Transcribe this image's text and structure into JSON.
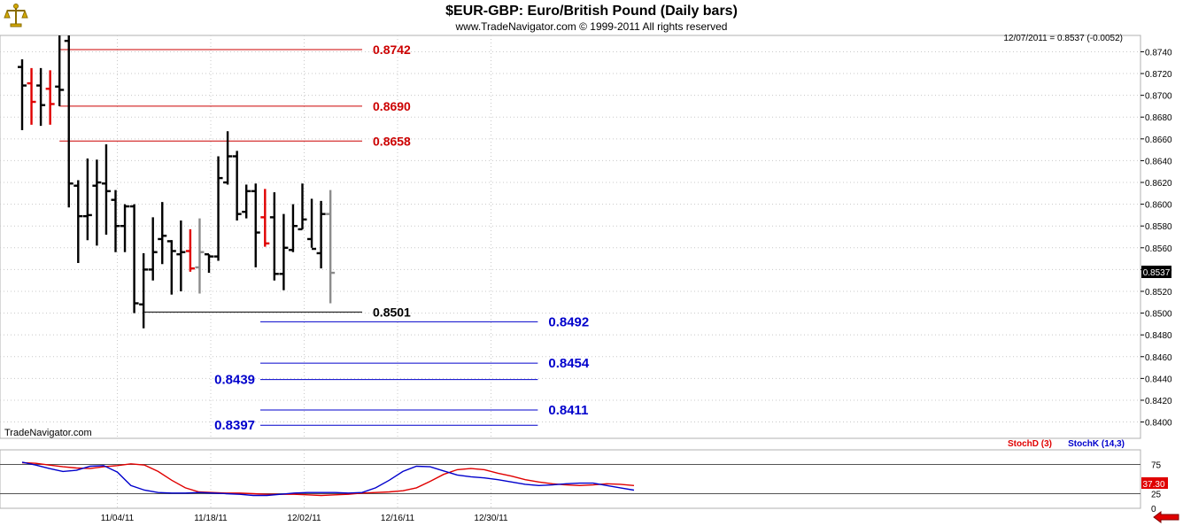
{
  "header": {
    "title": "$EUR-GBP:  Euro/British Pound  (Daily bars)",
    "subtitle": "www.TradeNavigator.com © 1999-2011 All rights reserved",
    "last_quote": "12/07/2011 = 0.8537 (-0.0052)",
    "watermark": "TradeNavigator.com"
  },
  "colors": {
    "up_bar": "#000000",
    "down_bar": "#e00000",
    "last_bar": "#8c8c8c",
    "resistance": "#cc0000",
    "support": "#000000",
    "target": "#0000cc",
    "stoch_d": "#e00000",
    "stoch_k": "#0000cc",
    "grid": "#c8c8c8"
  },
  "icons": {
    "logo": "scale-logo-icon",
    "nav": "back-arrow-icon"
  },
  "chart_data": {
    "type": "ohlc",
    "price_axis": {
      "ylim": [
        0.8385,
        0.8755
      ],
      "ticks": [
        "0.8740",
        "0.8720",
        "0.8700",
        "0.8680",
        "0.8660",
        "0.8640",
        "0.8620",
        "0.8600",
        "0.8580",
        "0.8560",
        "0.8540",
        "0.8520",
        "0.8500",
        "0.8480",
        "0.8460",
        "0.8440",
        "0.8420",
        "0.8400"
      ],
      "current_price_label": "0.8537"
    },
    "x_ticks": [
      "11/04/11",
      "11/18/11",
      "12/02/11",
      "12/16/11",
      "12/30/11"
    ],
    "x_tick_slots": [
      10,
      20,
      30,
      40,
      50
    ],
    "bars": [
      {
        "o": 0.8726,
        "h": 0.8733,
        "l": 0.8668,
        "c": 0.8709,
        "dir": "up"
      },
      {
        "o": 0.8711,
        "h": 0.8725,
        "l": 0.8673,
        "c": 0.8694,
        "dir": "down"
      },
      {
        "o": 0.8709,
        "h": 0.8725,
        "l": 0.8672,
        "c": 0.8691,
        "dir": "up"
      },
      {
        "o": 0.8706,
        "h": 0.8723,
        "l": 0.8673,
        "c": 0.8692,
        "dir": "down"
      },
      {
        "o": 0.8708,
        "h": 0.8755,
        "l": 0.869,
        "c": 0.8705,
        "dir": "up"
      },
      {
        "o": 0.875,
        "h": 0.8755,
        "l": 0.8597,
        "c": 0.8619,
        "dir": "up"
      },
      {
        "o": 0.8617,
        "h": 0.8622,
        "l": 0.8546,
        "c": 0.8589,
        "dir": "up"
      },
      {
        "o": 0.8589,
        "h": 0.8642,
        "l": 0.8567,
        "c": 0.859,
        "dir": "up"
      },
      {
        "o": 0.8617,
        "h": 0.8641,
        "l": 0.8562,
        "c": 0.862,
        "dir": "up"
      },
      {
        "o": 0.8619,
        "h": 0.8655,
        "l": 0.8572,
        "c": 0.8612,
        "dir": "up"
      },
      {
        "o": 0.8604,
        "h": 0.8613,
        "l": 0.8556,
        "c": 0.858,
        "dir": "up"
      },
      {
        "o": 0.858,
        "h": 0.86,
        "l": 0.8556,
        "c": 0.8598,
        "dir": "up"
      },
      {
        "o": 0.8598,
        "h": 0.86,
        "l": 0.85,
        "c": 0.8509,
        "dir": "up"
      },
      {
        "o": 0.8508,
        "h": 0.8555,
        "l": 0.8486,
        "c": 0.854,
        "dir": "up"
      },
      {
        "o": 0.854,
        "h": 0.8588,
        "l": 0.853,
        "c": 0.8556,
        "dir": "up"
      },
      {
        "o": 0.8568,
        "h": 0.8602,
        "l": 0.8545,
        "c": 0.8571,
        "dir": "up"
      },
      {
        "o": 0.8566,
        "h": 0.8567,
        "l": 0.8517,
        "c": 0.8557,
        "dir": "up"
      },
      {
        "o": 0.8554,
        "h": 0.8585,
        "l": 0.852,
        "c": 0.8556,
        "dir": "up"
      },
      {
        "o": 0.8557,
        "h": 0.8577,
        "l": 0.8538,
        "c": 0.8541,
        "dir": "down"
      },
      {
        "o": 0.8542,
        "h": 0.8587,
        "l": 0.8518,
        "c": 0.8556,
        "dir": "gray"
      },
      {
        "o": 0.8554,
        "h": 0.8554,
        "l": 0.8537,
        "c": 0.8552,
        "dir": "up"
      },
      {
        "o": 0.8552,
        "h": 0.8644,
        "l": 0.8548,
        "c": 0.8624,
        "dir": "up"
      },
      {
        "o": 0.862,
        "h": 0.8667,
        "l": 0.8618,
        "c": 0.8644,
        "dir": "up"
      },
      {
        "o": 0.8644,
        "h": 0.8649,
        "l": 0.8585,
        "c": 0.8591,
        "dir": "up"
      },
      {
        "o": 0.8593,
        "h": 0.8618,
        "l": 0.8587,
        "c": 0.8612,
        "dir": "up"
      },
      {
        "o": 0.8612,
        "h": 0.8619,
        "l": 0.8542,
        "c": 0.8574,
        "dir": "up"
      },
      {
        "o": 0.8588,
        "h": 0.8614,
        "l": 0.8561,
        "c": 0.8564,
        "dir": "down"
      },
      {
        "o": 0.8588,
        "h": 0.8611,
        "l": 0.853,
        "c": 0.8536,
        "dir": "up"
      },
      {
        "o": 0.8536,
        "h": 0.8591,
        "l": 0.8521,
        "c": 0.856,
        "dir": "up"
      },
      {
        "o": 0.8558,
        "h": 0.86,
        "l": 0.8556,
        "c": 0.858,
        "dir": "up"
      },
      {
        "o": 0.8577,
        "h": 0.8619,
        "l": 0.8577,
        "c": 0.8586,
        "dir": "up"
      },
      {
        "o": 0.8568,
        "h": 0.8605,
        "l": 0.856,
        "c": 0.8559,
        "dir": "up"
      },
      {
        "o": 0.8555,
        "h": 0.8603,
        "l": 0.8541,
        "c": 0.8591,
        "dir": "up"
      },
      {
        "o": 0.8591,
        "h": 0.8613,
        "l": 0.8509,
        "c": 0.8537,
        "dir": "gray"
      }
    ],
    "levels": [
      {
        "label": "0.8742",
        "value": 0.8742,
        "kind": "resistance",
        "from_slot": 4,
        "to_slot": 36.4,
        "label_side": "right"
      },
      {
        "label": "0.8690",
        "value": 0.869,
        "kind": "resistance",
        "from_slot": 4,
        "to_slot": 36.4,
        "label_side": "right"
      },
      {
        "label": "0.8658",
        "value": 0.8658,
        "kind": "resistance",
        "from_slot": 4,
        "to_slot": 36.4,
        "label_side": "right"
      },
      {
        "label": "0.8501",
        "value": 0.8501,
        "kind": "support",
        "from_slot": 13,
        "to_slot": 36.4,
        "label_side": "right"
      },
      {
        "label": "0.8492",
        "value": 0.8492,
        "kind": "target",
        "from_slot": 25.5,
        "to_slot": 55.2,
        "label_side": "right"
      },
      {
        "label": "0.8454",
        "value": 0.8454,
        "kind": "target",
        "from_slot": 25.5,
        "to_slot": 55.2,
        "label_side": "right"
      },
      {
        "label": "0.8439",
        "value": 0.8439,
        "kind": "target",
        "from_slot": 25.5,
        "to_slot": 55.2,
        "label_side": "left"
      },
      {
        "label": "0.8411",
        "value": 0.8411,
        "kind": "target",
        "from_slot": 25.5,
        "to_slot": 55.2,
        "label_side": "right"
      },
      {
        "label": "0.8397",
        "value": 0.8397,
        "kind": "target",
        "from_slot": 25.5,
        "to_slot": 55.2,
        "label_side": "left"
      }
    ],
    "stochastic": {
      "ylim": [
        0,
        100
      ],
      "ticks": [
        "75",
        "25",
        "0"
      ],
      "reference_lines": [
        75,
        25
      ],
      "current_label": "37.30",
      "series": [
        {
          "name": "StochD (3)",
          "values": [
            78,
            77,
            74,
            71,
            69,
            68,
            71,
            73,
            76,
            74,
            63,
            48,
            35,
            28,
            27,
            26,
            26,
            25,
            24,
            24,
            24,
            23,
            22,
            23,
            24,
            26,
            27,
            28,
            30,
            35,
            46,
            58,
            66,
            68,
            66,
            60,
            55,
            49,
            45,
            42,
            40,
            39,
            40,
            42,
            41,
            39
          ]
        },
        {
          "name": "StochK (14,3)",
          "values": [
            79,
            74,
            68,
            63,
            65,
            72,
            73,
            62,
            39,
            31,
            27,
            26,
            26,
            27,
            26,
            25,
            24,
            22,
            22,
            24,
            26,
            27,
            27,
            27,
            26,
            27,
            35,
            48,
            63,
            72,
            71,
            64,
            57,
            54,
            52,
            49,
            45,
            41,
            39,
            40,
            42,
            43,
            43,
            39,
            35,
            31
          ]
        }
      ]
    }
  }
}
